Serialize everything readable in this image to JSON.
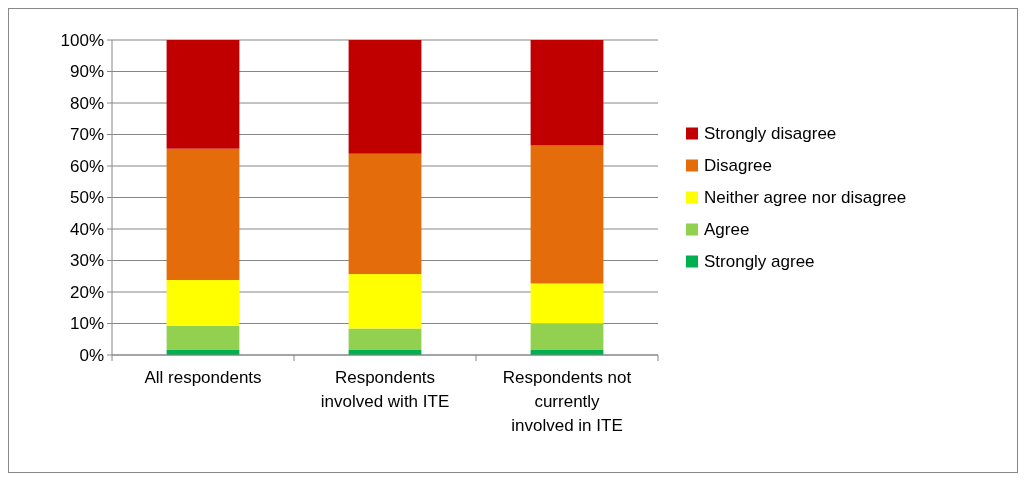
{
  "chart_data": {
    "type": "bar",
    "stacked": true,
    "categories": [
      "All respondents",
      "Respondents involved with ITE",
      "Respondents not currently involved in ITE"
    ],
    "series": [
      {
        "name": "Strongly agree",
        "color": "#00b050",
        "values": [
          1.6,
          1.6,
          1.6
        ]
      },
      {
        "name": "Agree",
        "color": "#92d050",
        "values": [
          7.7,
          6.8,
          8.4
        ]
      },
      {
        "name": "Neither agree nor disagree",
        "color": "#ffff00",
        "values": [
          14.5,
          17.3,
          12.7
        ]
      },
      {
        "name": "Disagree",
        "color": "#e46c0a",
        "values": [
          41.7,
          38.2,
          43.8
        ]
      },
      {
        "name": "Strongly disagree",
        "color": "#c00000",
        "values": [
          34.5,
          36.1,
          33.5
        ]
      }
    ],
    "ylim": [
      0,
      100
    ],
    "yticks": [
      {
        "value": 0,
        "label": "0%"
      },
      {
        "value": 10,
        "label": "10%"
      },
      {
        "value": 20,
        "label": "20%"
      },
      {
        "value": 30,
        "label": "30%"
      },
      {
        "value": 40,
        "label": "40%"
      },
      {
        "value": 50,
        "label": "50%"
      },
      {
        "value": 60,
        "label": "60%"
      },
      {
        "value": 70,
        "label": "70%"
      },
      {
        "value": 80,
        "label": "80%"
      },
      {
        "value": 90,
        "label": "90%"
      },
      {
        "value": 100,
        "label": "100%"
      }
    ],
    "grid": "y",
    "legend": "right"
  }
}
